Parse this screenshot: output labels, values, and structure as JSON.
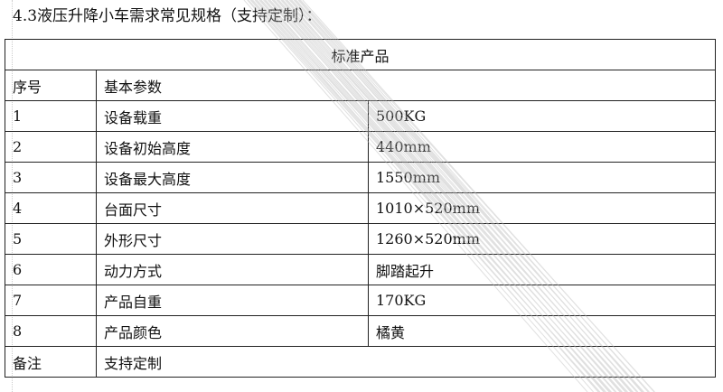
{
  "document": {
    "title": "4.3液压升降小车需求常见规格（支持定制）：",
    "table": {
      "header": "标准产品",
      "subheader": {
        "col1": "序号",
        "col2": "基本参数"
      },
      "rows": [
        {
          "no": "1",
          "param": "设备载重",
          "value": "500KG"
        },
        {
          "no": "2",
          "param": "设备初始高度",
          "value": "440mm"
        },
        {
          "no": "3",
          "param": "设备最大高度",
          "value": "1550mm"
        },
        {
          "no": "4",
          "param": "台面尺寸",
          "value": "1010×520mm"
        },
        {
          "no": "5",
          "param": "外形尺寸",
          "value": "1260×520mm"
        },
        {
          "no": "6",
          "param": "动力方式",
          "value": "脚踏起升"
        },
        {
          "no": "7",
          "param": "产品自重",
          "value": "170KG"
        },
        {
          "no": "8",
          "param": "产品颜色",
          "value": "橘黄"
        }
      ],
      "remark": {
        "label": "备注",
        "value": "支持定制"
      }
    }
  }
}
